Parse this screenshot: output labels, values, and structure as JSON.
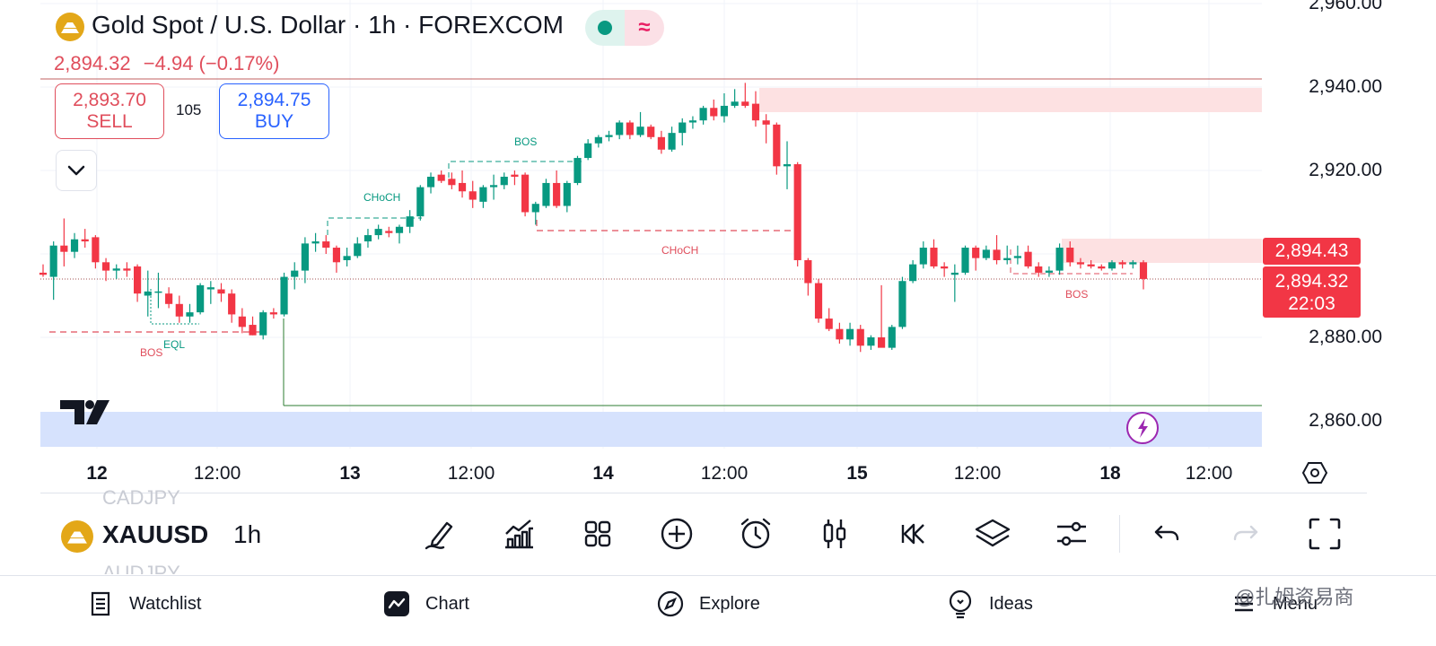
{
  "header": {
    "title": "Gold Spot / U.S. Dollar · 1h · FOREXCOM",
    "last_price": "2,894.32",
    "change": "−4.94 (−0.17%)",
    "status_icon": "market-open-dot",
    "status_icon2": "≈",
    "sell_price": "2,893.70",
    "sell_label": "SELL",
    "buy_price": "2,894.75",
    "buy_label": "BUY",
    "spread": "105"
  },
  "price_axis": {
    "labels": [
      "2,960.00",
      "2,940.00",
      "2,920.00",
      "2,880.00",
      "2,860.00"
    ],
    "badge_upper": "2,894.43",
    "badge_current": "2,894.32",
    "countdown": "22:03"
  },
  "time_axis": {
    "labels": [
      "12",
      "12:00",
      "13",
      "12:00",
      "14",
      "12:00",
      "15",
      "12:00",
      "18",
      "12:00"
    ]
  },
  "annotations": {
    "bos_1": "BOS",
    "eql": "EQL",
    "choch_1": "CHoCH",
    "bos_2": "BOS",
    "choch_2": "CHoCH",
    "bos_3": "BOS"
  },
  "chart_data": {
    "type": "candlestick",
    "interval": "1h",
    "y_range": [
      2856,
      2962
    ],
    "up_color": "#089981",
    "down_color": "#f23645",
    "candles": [
      {
        "o": 2895.5,
        "h": 2897.5,
        "l": 2894.5,
        "c": 2895.0
      },
      {
        "o": 2894.5,
        "h": 2903.0,
        "l": 2889.0,
        "c": 2902.0
      },
      {
        "o": 2902.0,
        "h": 2908.5,
        "l": 2897.0,
        "c": 2900.5
      },
      {
        "o": 2900.5,
        "h": 2905.0,
        "l": 2899.0,
        "c": 2903.5
      },
      {
        "o": 2903.5,
        "h": 2906.0,
        "l": 2901.5,
        "c": 2903.0
      },
      {
        "o": 2904.0,
        "h": 2904.5,
        "l": 2896.5,
        "c": 2898.0
      },
      {
        "o": 2898.0,
        "h": 2899.0,
        "l": 2893.5,
        "c": 2896.0
      },
      {
        "o": 2896.0,
        "h": 2897.5,
        "l": 2894.0,
        "c": 2896.5
      },
      {
        "o": 2896.5,
        "h": 2898.0,
        "l": 2894.5,
        "c": 2896.0
      },
      {
        "o": 2897.0,
        "h": 2897.5,
        "l": 2888.5,
        "c": 2890.5
      },
      {
        "o": 2890.0,
        "h": 2896.0,
        "l": 2885.0,
        "c": 2891.0
      },
      {
        "o": 2891.0,
        "h": 2895.5,
        "l": 2887.0,
        "c": 2891.0
      },
      {
        "o": 2890.5,
        "h": 2892.0,
        "l": 2887.0,
        "c": 2888.0
      },
      {
        "o": 2888.0,
        "h": 2890.0,
        "l": 2883.5,
        "c": 2885.0
      },
      {
        "o": 2885.0,
        "h": 2888.0,
        "l": 2883.5,
        "c": 2886.0
      },
      {
        "o": 2886.0,
        "h": 2893.0,
        "l": 2885.5,
        "c": 2892.5
      },
      {
        "o": 2891.5,
        "h": 2893.5,
        "l": 2888.0,
        "c": 2892.0
      },
      {
        "o": 2891.5,
        "h": 2893.0,
        "l": 2888.5,
        "c": 2890.5
      },
      {
        "o": 2890.5,
        "h": 2891.5,
        "l": 2883.5,
        "c": 2885.5
      },
      {
        "o": 2885.0,
        "h": 2887.0,
        "l": 2881.0,
        "c": 2882.5
      },
      {
        "o": 2883.0,
        "h": 2885.0,
        "l": 2880.5,
        "c": 2880.5
      },
      {
        "o": 2880.5,
        "h": 2886.5,
        "l": 2879.5,
        "c": 2886.0
      },
      {
        "o": 2886.0,
        "h": 2887.0,
        "l": 2884.5,
        "c": 2885.5
      },
      {
        "o": 2885.5,
        "h": 2895.5,
        "l": 2885.0,
        "c": 2894.5
      },
      {
        "o": 2894.5,
        "h": 2898.0,
        "l": 2891.5,
        "c": 2896.0
      },
      {
        "o": 2896.0,
        "h": 2904.0,
        "l": 2893.0,
        "c": 2902.5
      },
      {
        "o": 2902.5,
        "h": 2905.0,
        "l": 2900.5,
        "c": 2903.0
      },
      {
        "o": 2903.0,
        "h": 2904.5,
        "l": 2900.0,
        "c": 2901.5
      },
      {
        "o": 2901.5,
        "h": 2902.0,
        "l": 2895.5,
        "c": 2898.0
      },
      {
        "o": 2898.5,
        "h": 2901.5,
        "l": 2897.0,
        "c": 2899.5
      },
      {
        "o": 2899.5,
        "h": 2904.0,
        "l": 2899.0,
        "c": 2902.5
      },
      {
        "o": 2903.0,
        "h": 2906.0,
        "l": 2901.5,
        "c": 2904.5
      },
      {
        "o": 2904.5,
        "h": 2907.0,
        "l": 2903.5,
        "c": 2906.0
      },
      {
        "o": 2905.5,
        "h": 2906.5,
        "l": 2904.0,
        "c": 2905.0
      },
      {
        "o": 2905.0,
        "h": 2907.0,
        "l": 2902.5,
        "c": 2906.5
      },
      {
        "o": 2906.5,
        "h": 2910.5,
        "l": 2905.0,
        "c": 2909.0
      },
      {
        "o": 2909.0,
        "h": 2916.5,
        "l": 2908.0,
        "c": 2916.0
      },
      {
        "o": 2916.0,
        "h": 2919.5,
        "l": 2914.5,
        "c": 2918.5
      },
      {
        "o": 2919.0,
        "h": 2920.0,
        "l": 2917.0,
        "c": 2917.5
      },
      {
        "o": 2918.0,
        "h": 2919.5,
        "l": 2915.5,
        "c": 2916.5
      },
      {
        "o": 2917.0,
        "h": 2920.0,
        "l": 2913.5,
        "c": 2915.0
      },
      {
        "o": 2915.0,
        "h": 2917.5,
        "l": 2911.0,
        "c": 2913.0
      },
      {
        "o": 2912.5,
        "h": 2916.5,
        "l": 2911.0,
        "c": 2916.0
      },
      {
        "o": 2916.0,
        "h": 2919.0,
        "l": 2913.0,
        "c": 2916.5
      },
      {
        "o": 2916.5,
        "h": 2919.5,
        "l": 2915.5,
        "c": 2918.5
      },
      {
        "o": 2919.0,
        "h": 2920.0,
        "l": 2916.5,
        "c": 2918.5
      },
      {
        "o": 2919.0,
        "h": 2919.5,
        "l": 2909.0,
        "c": 2910.0
      },
      {
        "o": 2910.0,
        "h": 2912.5,
        "l": 2907.0,
        "c": 2912.0
      },
      {
        "o": 2911.5,
        "h": 2918.0,
        "l": 2911.0,
        "c": 2917.0
      },
      {
        "o": 2917.0,
        "h": 2920.0,
        "l": 2911.0,
        "c": 2911.5
      },
      {
        "o": 2911.5,
        "h": 2917.5,
        "l": 2910.0,
        "c": 2917.0
      },
      {
        "o": 2917.0,
        "h": 2923.5,
        "l": 2916.5,
        "c": 2923.0
      },
      {
        "o": 2923.0,
        "h": 2927.5,
        "l": 2922.5,
        "c": 2926.5
      },
      {
        "o": 2926.5,
        "h": 2928.5,
        "l": 2925.5,
        "c": 2928.0
      },
      {
        "o": 2928.0,
        "h": 2929.5,
        "l": 2927.0,
        "c": 2928.5
      },
      {
        "o": 2928.5,
        "h": 2932.0,
        "l": 2927.5,
        "c": 2931.5
      },
      {
        "o": 2931.5,
        "h": 2932.0,
        "l": 2927.5,
        "c": 2928.5
      },
      {
        "o": 2928.5,
        "h": 2934.0,
        "l": 2928.0,
        "c": 2930.5
      },
      {
        "o": 2930.5,
        "h": 2931.0,
        "l": 2927.5,
        "c": 2928.0
      },
      {
        "o": 2928.0,
        "h": 2929.5,
        "l": 2924.0,
        "c": 2925.0
      },
      {
        "o": 2925.0,
        "h": 2930.5,
        "l": 2924.5,
        "c": 2929.0
      },
      {
        "o": 2929.0,
        "h": 2932.5,
        "l": 2926.0,
        "c": 2931.5
      },
      {
        "o": 2931.5,
        "h": 2933.0,
        "l": 2930.0,
        "c": 2932.0
      },
      {
        "o": 2932.0,
        "h": 2935.5,
        "l": 2931.0,
        "c": 2935.0
      },
      {
        "o": 2935.0,
        "h": 2937.0,
        "l": 2932.0,
        "c": 2933.0
      },
      {
        "o": 2933.0,
        "h": 2938.5,
        "l": 2931.5,
        "c": 2935.5
      },
      {
        "o": 2935.5,
        "h": 2939.5,
        "l": 2935.0,
        "c": 2936.5
      },
      {
        "o": 2936.5,
        "h": 2941.0,
        "l": 2935.0,
        "c": 2935.5
      },
      {
        "o": 2936.0,
        "h": 2939.0,
        "l": 2930.5,
        "c": 2932.0
      },
      {
        "o": 2932.0,
        "h": 2933.5,
        "l": 2926.5,
        "c": 2931.0
      },
      {
        "o": 2931.0,
        "h": 2931.5,
        "l": 2919.0,
        "c": 2921.0
      },
      {
        "o": 2921.0,
        "h": 2927.0,
        "l": 2915.5,
        "c": 2921.5
      },
      {
        "o": 2921.5,
        "h": 2922.0,
        "l": 2897.0,
        "c": 2898.5
      },
      {
        "o": 2898.5,
        "h": 2899.0,
        "l": 2890.0,
        "c": 2893.0
      },
      {
        "o": 2893.0,
        "h": 2894.0,
        "l": 2883.5,
        "c": 2884.5
      },
      {
        "o": 2884.5,
        "h": 2887.0,
        "l": 2881.5,
        "c": 2882.0
      },
      {
        "o": 2882.0,
        "h": 2883.5,
        "l": 2878.5,
        "c": 2879.5
      },
      {
        "o": 2879.5,
        "h": 2883.5,
        "l": 2878.0,
        "c": 2882.0
      },
      {
        "o": 2882.0,
        "h": 2883.0,
        "l": 2876.5,
        "c": 2878.0
      },
      {
        "o": 2878.0,
        "h": 2880.5,
        "l": 2877.0,
        "c": 2880.0
      },
      {
        "o": 2880.0,
        "h": 2892.5,
        "l": 2878.0,
        "c": 2877.5
      },
      {
        "o": 2877.5,
        "h": 2883.0,
        "l": 2877.0,
        "c": 2882.5
      },
      {
        "o": 2882.5,
        "h": 2894.5,
        "l": 2882.0,
        "c": 2893.5
      },
      {
        "o": 2893.5,
        "h": 2898.5,
        "l": 2893.0,
        "c": 2897.5
      },
      {
        "o": 2897.5,
        "h": 2903.0,
        "l": 2896.5,
        "c": 2901.5
      },
      {
        "o": 2901.5,
        "h": 2903.5,
        "l": 2896.5,
        "c": 2897.0
      },
      {
        "o": 2897.0,
        "h": 2898.0,
        "l": 2894.5,
        "c": 2896.5
      },
      {
        "o": 2895.0,
        "h": 2897.5,
        "l": 2888.5,
        "c": 2895.5
      },
      {
        "o": 2895.5,
        "h": 2902.0,
        "l": 2895.0,
        "c": 2901.5
      },
      {
        "o": 2901.5,
        "h": 2902.0,
        "l": 2896.0,
        "c": 2899.0
      },
      {
        "o": 2899.0,
        "h": 2902.0,
        "l": 2898.5,
        "c": 2901.0
      },
      {
        "o": 2901.0,
        "h": 2904.5,
        "l": 2897.5,
        "c": 2898.5
      },
      {
        "o": 2898.5,
        "h": 2902.0,
        "l": 2897.5,
        "c": 2899.0
      },
      {
        "o": 2899.0,
        "h": 2902.0,
        "l": 2897.5,
        "c": 2899.5
      },
      {
        "o": 2900.5,
        "h": 2902.0,
        "l": 2896.5,
        "c": 2897.0
      },
      {
        "o": 2897.0,
        "h": 2898.0,
        "l": 2894.5,
        "c": 2895.5
      },
      {
        "o": 2895.5,
        "h": 2897.0,
        "l": 2894.5,
        "c": 2896.0
      },
      {
        "o": 2896.0,
        "h": 2902.5,
        "l": 2895.0,
        "c": 2901.5
      },
      {
        "o": 2901.5,
        "h": 2903.0,
        "l": 2897.0,
        "c": 2898.0
      },
      {
        "o": 2898.0,
        "h": 2899.0,
        "l": 2896.5,
        "c": 2897.5
      },
      {
        "o": 2897.5,
        "h": 2898.5,
        "l": 2896.5,
        "c": 2897.0
      },
      {
        "o": 2897.0,
        "h": 2897.5,
        "l": 2896.0,
        "c": 2896.5
      },
      {
        "o": 2896.5,
        "h": 2898.5,
        "l": 2896.0,
        "c": 2898.0
      },
      {
        "o": 2898.0,
        "h": 2898.5,
        "l": 2896.5,
        "c": 2897.5
      },
      {
        "o": 2897.5,
        "h": 2898.5,
        "l": 2896.5,
        "c": 2898.0
      },
      {
        "o": 2898.0,
        "h": 2898.5,
        "l": 2891.5,
        "c": 2894.0
      }
    ]
  },
  "toolbar": {
    "symbol": "XAUUSD",
    "symbol_above": "CADJPY",
    "symbol_below": "AUDJPY",
    "interval": "1h",
    "icons": [
      "draw-icon",
      "indicators-icon",
      "layouts-icon",
      "add-icon",
      "alert-icon",
      "chart-type-icon",
      "replay-icon",
      "layers-icon",
      "settings-icon",
      "undo-icon",
      "redo-icon",
      "fullscreen-icon"
    ]
  },
  "nav": {
    "watchlist": "Watchlist",
    "chart": "Chart",
    "explore": "Explore",
    "ideas": "Ideas",
    "menu": "Menu"
  },
  "watermark": "@扎姆资易商"
}
